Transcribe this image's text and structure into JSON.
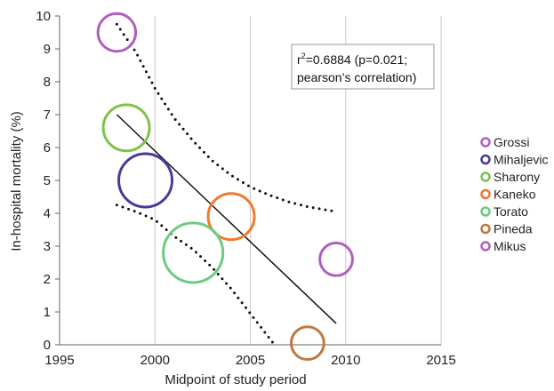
{
  "chart_data": {
    "type": "scatter",
    "title": "",
    "xlabel": "Midpoint of study period",
    "ylabel": "In-hospital mortality (%)",
    "xlim": [
      1995,
      2015
    ],
    "ylim": [
      0,
      10
    ],
    "xticks": [
      "1995",
      "2000",
      "2005",
      "2010",
      "2015"
    ],
    "yticks": [
      "0",
      "1",
      "2",
      "3",
      "4",
      "5",
      "6",
      "7",
      "8",
      "9",
      "10"
    ],
    "grid": "vertical",
    "legend_position": "right",
    "annotation": {
      "line1_prefix": "r",
      "line1_sup": "2",
      "line1_rest": "=0.6884 (p=0.021;",
      "line2": "pearson’s correlation)"
    },
    "series": [
      {
        "name": "Grossi",
        "color": "#B05FC0",
        "x": 1998.0,
        "y": 9.5,
        "size": 2
      },
      {
        "name": "Mihaljevic",
        "color": "#4A3A9A",
        "x": 1999.5,
        "y": 5.0,
        "size": 4
      },
      {
        "name": "Sharony",
        "color": "#7DC34A",
        "x": 1998.5,
        "y": 6.6,
        "size": 3
      },
      {
        "name": "Kaneko",
        "color": "#F07A30",
        "x": 2004.0,
        "y": 3.9,
        "size": 3
      },
      {
        "name": "Torato",
        "color": "#6CCB80",
        "x": 2002.0,
        "y": 2.8,
        "size": 5
      },
      {
        "name": "Pineda",
        "color": "#C07840",
        "x": 2008.0,
        "y": 0.05,
        "size": 1.5
      },
      {
        "name": "Mikus",
        "color": "#B05FC0",
        "x": 2009.5,
        "y": 2.6,
        "size": 1.5
      }
    ],
    "regression_line": {
      "x": [
        1998.0,
        2009.5
      ],
      "y": [
        7.0,
        0.65
      ]
    },
    "upper_band": {
      "x": [
        1998.0,
        1999,
        2000,
        2001,
        2002,
        2003,
        2004,
        2005,
        2006,
        2007,
        2008,
        2009.5
      ],
      "y": [
        9.75,
        8.9,
        7.8,
        6.9,
        6.2,
        5.6,
        5.15,
        4.8,
        4.55,
        4.35,
        4.2,
        4.05
      ]
    },
    "lower_band": {
      "x": [
        1998.0,
        1999,
        2000,
        2001,
        2002,
        2003,
        2004,
        2005,
        2006.2
      ],
      "y": [
        4.25,
        4.05,
        3.8,
        3.3,
        2.9,
        2.35,
        1.7,
        0.95,
        0.05
      ]
    }
  }
}
